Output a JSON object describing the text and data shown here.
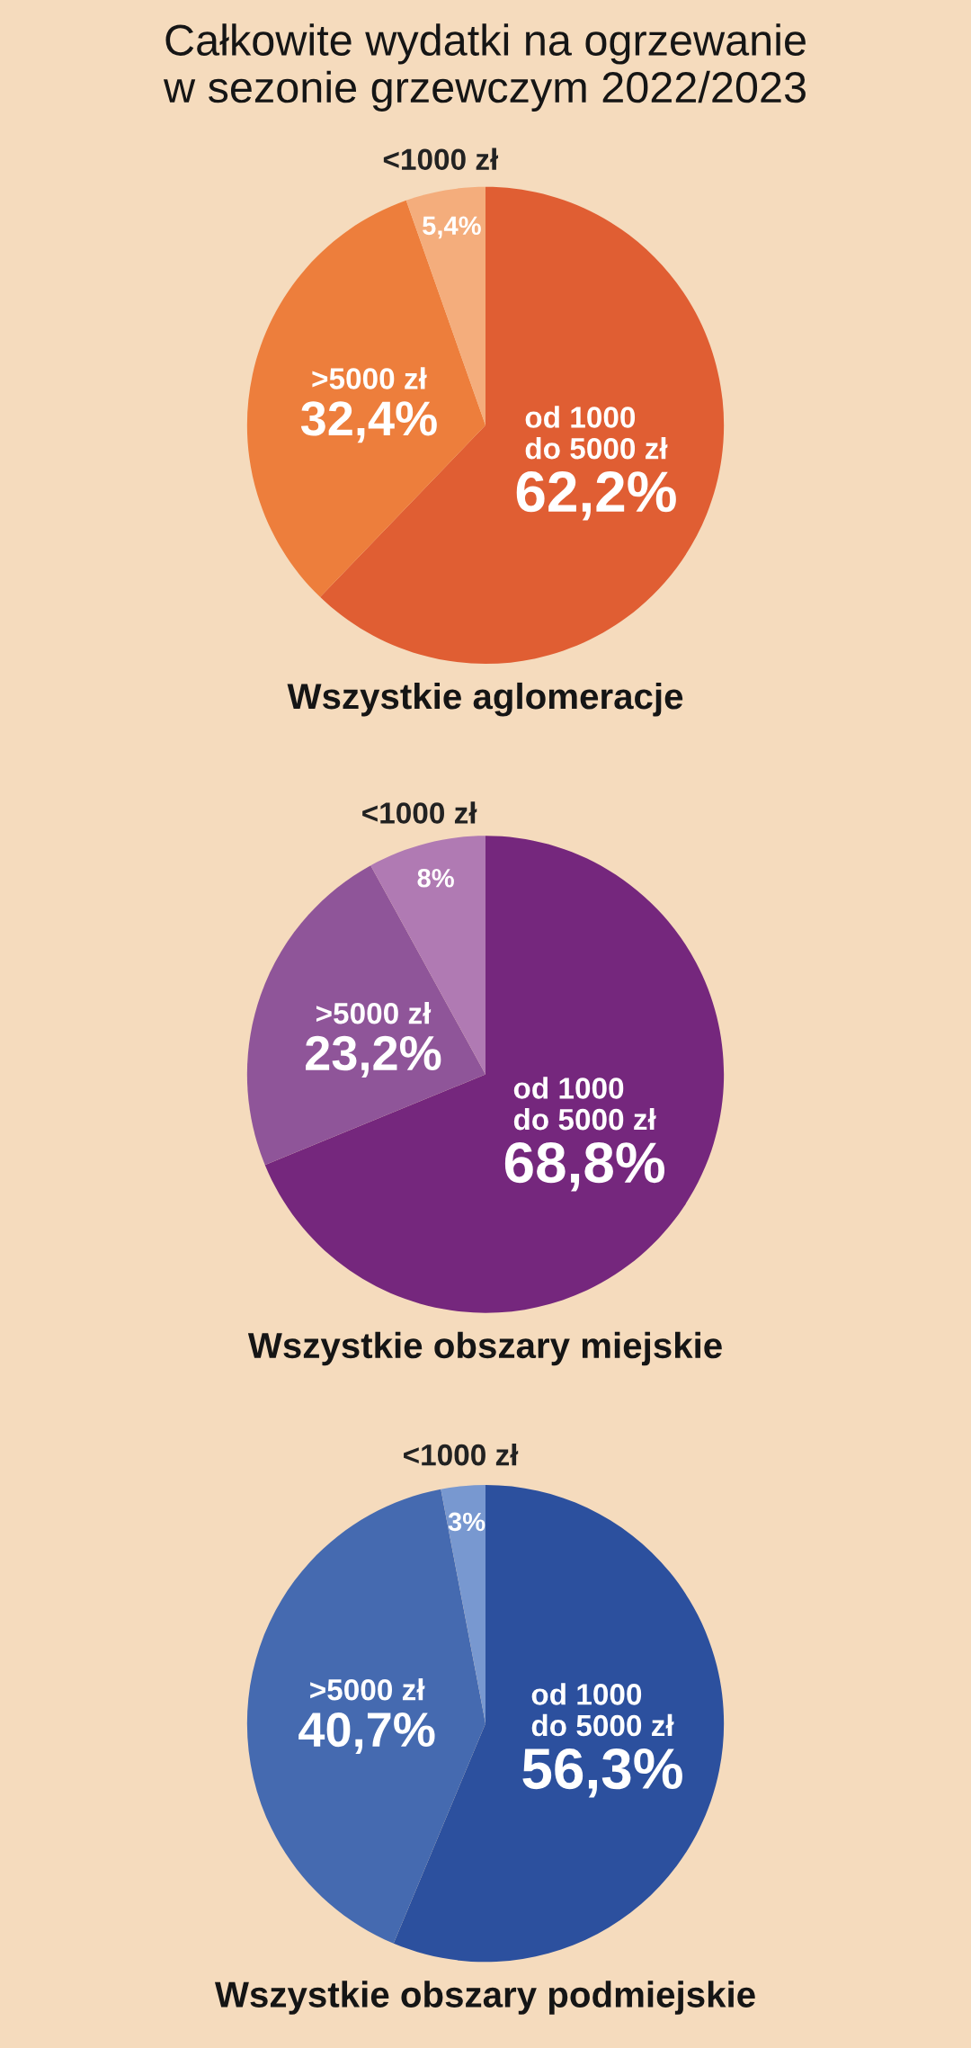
{
  "chart_data": [
    {
      "type": "pie",
      "title": "Całkowite wydatki na ogrzewanie\nw sezonie grzewczym 2022/2023",
      "subtitle": "Wszystkie aglomeracje",
      "categories": [
        "od 1000\ndo 5000 zł",
        ">5000 zł",
        "<1000 zł"
      ],
      "values": [
        62.2,
        32.4,
        5.4
      ],
      "value_labels": [
        "62,2%",
        "32,4%",
        "5,4%"
      ],
      "colors": [
        "#e05e33",
        "#ed7e3c",
        "#f4ad7c"
      ]
    },
    {
      "type": "pie",
      "subtitle": "Wszystkie obszary miejskie",
      "categories": [
        "od 1000\ndo 5000 zł",
        ">5000 zł",
        "<1000 zł"
      ],
      "values": [
        68.8,
        23.2,
        8
      ],
      "value_labels": [
        "68,8%",
        "23,2%",
        "8%"
      ],
      "colors": [
        "#75277d",
        "#8f5599",
        "#b07ab3"
      ]
    },
    {
      "type": "pie",
      "subtitle": "Wszystkie obszary podmiejskie",
      "categories": [
        "od 1000\ndo 5000 zł",
        ">5000 zł",
        "<1000 zł"
      ],
      "values": [
        56.3,
        40.7,
        3
      ],
      "value_labels": [
        "56,3%",
        "40,7%",
        "3%"
      ],
      "colors": [
        "#2c509e",
        "#456ab0",
        "#7898d0"
      ]
    }
  ]
}
